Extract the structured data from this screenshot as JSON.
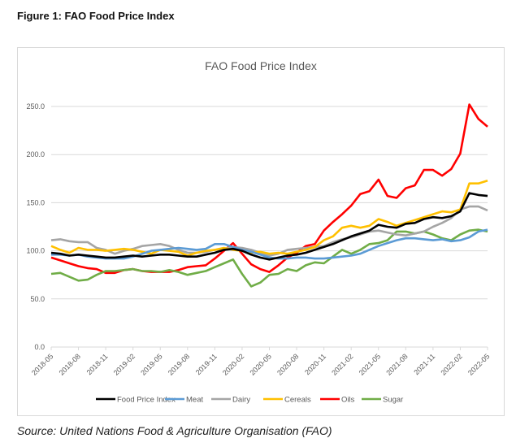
{
  "figure_title": "Figure 1: FAO Food Price Index",
  "source": "Source: United Nations Food & Agriculture Organisation (FAO)",
  "chart_data": {
    "type": "line",
    "title": "FAO Food Price Index",
    "xlabel": "",
    "ylabel": "",
    "ylim": [
      0,
      250
    ],
    "yticks": [
      "0.0",
      "50.0",
      "100.0",
      "150.0",
      "200.0",
      "250.0"
    ],
    "ytick_values": [
      0,
      50,
      100,
      150,
      200,
      250
    ],
    "x": [
      "2018-05",
      "2018-06",
      "2018-07",
      "2018-08",
      "2018-09",
      "2018-10",
      "2018-11",
      "2018-12",
      "2019-01",
      "2019-02",
      "2019-03",
      "2019-04",
      "2019-05",
      "2019-06",
      "2019-07",
      "2019-08",
      "2019-09",
      "2019-10",
      "2019-11",
      "2019-12",
      "2020-01",
      "2020-02",
      "2020-03",
      "2020-04",
      "2020-05",
      "2020-06",
      "2020-07",
      "2020-08",
      "2020-09",
      "2020-10",
      "2020-11",
      "2020-12",
      "2021-01",
      "2021-02",
      "2021-03",
      "2021-04",
      "2021-05",
      "2021-06",
      "2021-07",
      "2021-08",
      "2021-09",
      "2021-10",
      "2021-11",
      "2021-12",
      "2022-01",
      "2022-02",
      "2022-03",
      "2022-04",
      "2022-05"
    ],
    "xtick_labels": [
      "2018-05",
      "2018-08",
      "2018-11",
      "2019-02",
      "2019-05",
      "2019-08",
      "2019-11",
      "2020-02",
      "2020-05",
      "2020-08",
      "2020-11",
      "2021-02",
      "2021-05",
      "2021-08",
      "2021-11",
      "2022-02",
      "2022-05"
    ],
    "grid": true,
    "legend_position": "bottom",
    "series": [
      {
        "name": "Food Price Index",
        "color": "#000000",
        "values": [
          98,
          97,
          95,
          96,
          95,
          94,
          93,
          93,
          94,
          95,
          94,
          95,
          96,
          96,
          95,
          94,
          94,
          96,
          98,
          101,
          102,
          100,
          96,
          93,
          91,
          93,
          95,
          96,
          98,
          101,
          104,
          107,
          111,
          115,
          118,
          121,
          127,
          125,
          124,
          128,
          129,
          133,
          135,
          134,
          136,
          141,
          160,
          158,
          157
        ]
      },
      {
        "name": "Meat",
        "color": "#5b9bd5",
        "values": [
          96,
          96,
          95,
          96,
          94,
          93,
          92,
          92,
          92,
          94,
          97,
          100,
          101,
          102,
          103,
          102,
          101,
          102,
          107,
          107,
          104,
          101,
          99,
          96,
          93,
          92,
          92,
          93,
          93,
          92,
          92,
          93,
          94,
          95,
          97,
          101,
          105,
          108,
          111,
          113,
          113,
          112,
          111,
          112,
          110,
          111,
          114,
          120,
          122
        ]
      },
      {
        "name": "Dairy",
        "color": "#a5a5a5",
        "values": [
          111,
          112,
          110,
          109,
          109,
          103,
          101,
          97,
          100,
          102,
          105,
          106,
          107,
          105,
          101,
          98,
          98,
          99,
          101,
          102,
          104,
          103,
          101,
          98,
          95,
          97,
          101,
          102,
          103,
          104,
          105,
          109,
          112,
          114,
          117,
          120,
          121,
          119,
          117,
          116,
          118,
          120,
          125,
          129,
          134,
          143,
          146,
          146,
          142
        ]
      },
      {
        "name": "Cereals",
        "color": "#ffc000",
        "values": [
          105,
          101,
          98,
          103,
          101,
          101,
          100,
          101,
          102,
          101,
          99,
          97,
          101,
          100,
          99,
          95,
          98,
          100,
          101,
          103,
          101,
          100,
          98,
          99,
          97,
          98,
          97,
          99,
          101,
          104,
          111,
          115,
          124,
          126,
          124,
          126,
          133,
          130,
          126,
          129,
          132,
          135,
          138,
          141,
          140,
          143,
          170,
          170,
          173
        ]
      },
      {
        "name": "Oils",
        "color": "#ff0000",
        "values": [
          93,
          90,
          87,
          84,
          82,
          81,
          77,
          77,
          80,
          81,
          79,
          78,
          78,
          78,
          80,
          83,
          84,
          85,
          92,
          100,
          108,
          97,
          86,
          81,
          78,
          85,
          93,
          98,
          105,
          107,
          121,
          130,
          138,
          147,
          159,
          162,
          174,
          157,
          155,
          165,
          168,
          184,
          184,
          178,
          185,
          201,
          252,
          237,
          229
        ]
      },
      {
        "name": "Sugar",
        "color": "#70ad47",
        "values": [
          76,
          77,
          73,
          69,
          70,
          75,
          79,
          79,
          80,
          81,
          79,
          79,
          78,
          80,
          78,
          75,
          77,
          79,
          83,
          87,
          91,
          76,
          63,
          67,
          75,
          76,
          81,
          79,
          85,
          88,
          87,
          94,
          101,
          97,
          101,
          107,
          108,
          111,
          120,
          120,
          118,
          120,
          117,
          113,
          111,
          117,
          121,
          122,
          120
        ]
      }
    ]
  }
}
